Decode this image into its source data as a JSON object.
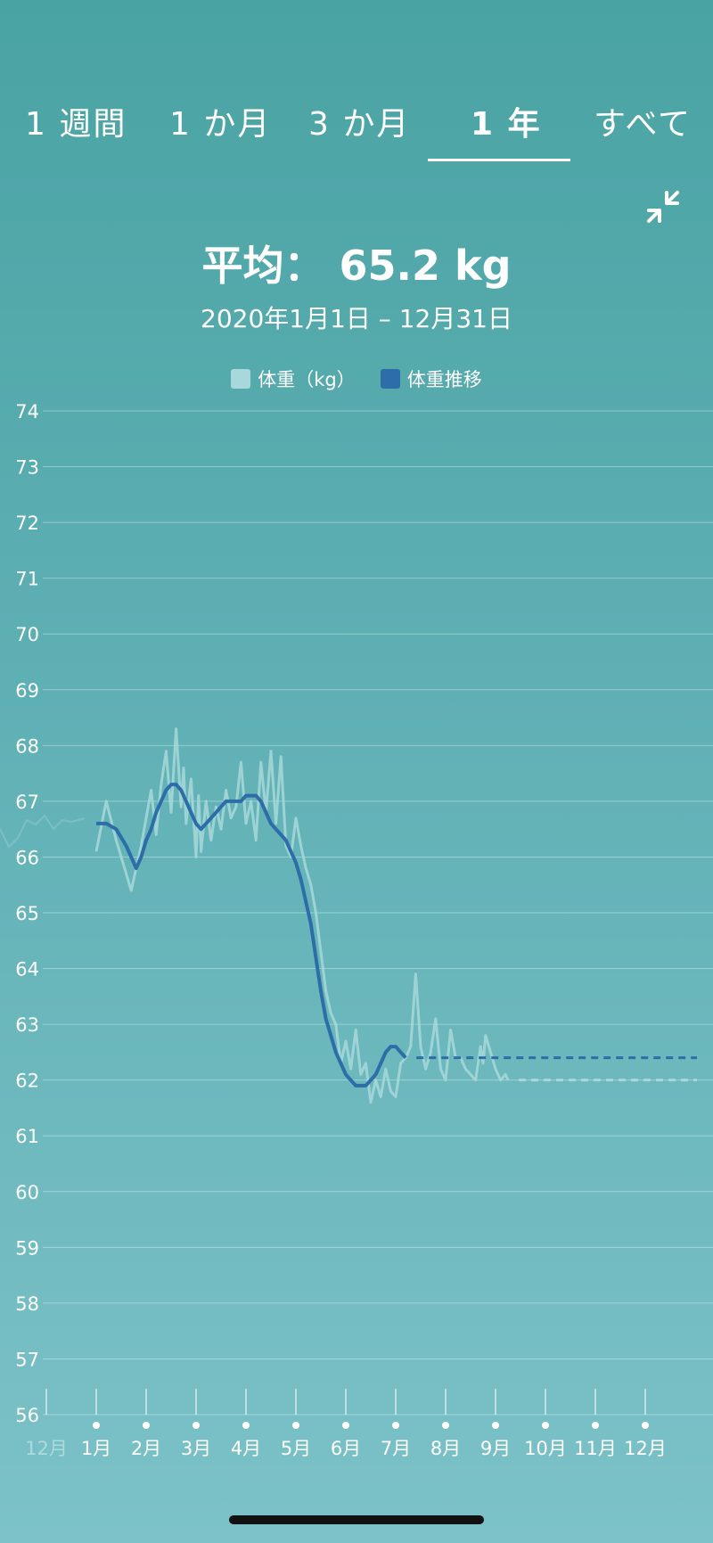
{
  "tabs": [
    {
      "label": "1 週間"
    },
    {
      "label": "1 か月"
    },
    {
      "label": "3 か月"
    },
    {
      "label": "1 年",
      "active": true
    },
    {
      "label": "すべて"
    }
  ],
  "icons": {
    "collapse": "collapse-arrows-icon"
  },
  "summary": {
    "average": "平均： 65.2 kg",
    "date_range": "2020年1月1日 – 12月31日"
  },
  "legend": {
    "raw": "体重（kg）",
    "trend": "体重推移"
  },
  "colors": {
    "raw_series": "#a8d8db",
    "trend_series": "#2d6da8",
    "grid": "#ffffff",
    "background_top": "#4aa3a3",
    "background_bottom": "#7cc2c8"
  },
  "chart_data": {
    "type": "line",
    "title": "",
    "xlabel": "",
    "ylabel": "",
    "ylim": [
      56,
      74
    ],
    "y_ticks": [
      "74",
      "73",
      "72",
      "71",
      "70",
      "69",
      "68",
      "67",
      "66",
      "65",
      "64",
      "63",
      "62",
      "61",
      "60",
      "59",
      "58",
      "57",
      "56"
    ],
    "x_ticks": [
      "1月",
      "2月",
      "3月",
      "4月",
      "5月",
      "6月",
      "7月",
      "8月",
      "9月",
      "10月",
      "11月",
      "12月"
    ],
    "previous_labels": [
      "12月"
    ],
    "grid": true,
    "legend_position": "top-center",
    "series": [
      {
        "name": "体重（kg）",
        "kind": "raw",
        "x": [
          0.0,
          0.2,
          0.4,
          0.7,
          0.9,
          1.0,
          1.1,
          1.2,
          1.3,
          1.4,
          1.5,
          1.6,
          1.7,
          1.75,
          1.8,
          1.9,
          2.0,
          2.05,
          2.1,
          2.2,
          2.3,
          2.4,
          2.5,
          2.6,
          2.7,
          2.8,
          2.9,
          3.0,
          3.1,
          3.2,
          3.3,
          3.4,
          3.5,
          3.6,
          3.7,
          3.8,
          3.9,
          4.0,
          4.1,
          4.2,
          4.3,
          4.4,
          4.5,
          4.6,
          4.7,
          4.8,
          4.9,
          5.0,
          5.1,
          5.2,
          5.3,
          5.4,
          5.5,
          5.6,
          5.7,
          5.8,
          5.9,
          6.0,
          6.1,
          6.2,
          6.3,
          6.4,
          6.5,
          6.6,
          6.7,
          6.8,
          6.9,
          7.0,
          7.1,
          7.2,
          7.3,
          7.4,
          7.5,
          7.6,
          7.7,
          7.75,
          7.8,
          7.9,
          8.0,
          8.1,
          8.2,
          8.25
        ],
        "values": [
          66.1,
          67.0,
          66.3,
          65.4,
          66.2,
          66.7,
          67.2,
          66.4,
          67.3,
          67.9,
          66.8,
          68.3,
          66.9,
          67.6,
          66.6,
          67.4,
          66.0,
          67.1,
          66.1,
          67.0,
          66.3,
          66.9,
          66.5,
          67.2,
          66.7,
          66.9,
          67.7,
          66.6,
          67.0,
          66.3,
          67.7,
          66.8,
          67.9,
          66.6,
          67.8,
          66.2,
          66.0,
          66.7,
          66.2,
          65.8,
          65.5,
          65.0,
          64.3,
          63.6,
          63.2,
          63.0,
          62.3,
          62.7,
          62.2,
          62.9,
          62.1,
          62.3,
          61.6,
          62.0,
          61.7,
          62.2,
          61.8,
          61.7,
          62.3,
          62.4,
          62.6,
          63.9,
          62.6,
          62.2,
          62.5,
          63.1,
          62.2,
          62.0,
          62.9,
          62.4,
          62.4,
          62.2,
          62.1,
          62.0,
          62.6,
          62.3,
          62.8,
          62.5,
          62.2,
          62.0,
          62.1,
          62.0
        ],
        "forecast": 62.0
      },
      {
        "name": "体重推移",
        "kind": "trend",
        "x": [
          0.0,
          0.2,
          0.4,
          0.6,
          0.7,
          0.8,
          0.9,
          1.0,
          1.1,
          1.2,
          1.3,
          1.4,
          1.5,
          1.6,
          1.7,
          1.8,
          1.9,
          2.0,
          2.1,
          2.2,
          2.3,
          2.4,
          2.5,
          2.6,
          2.7,
          2.8,
          2.9,
          3.0,
          3.1,
          3.2,
          3.3,
          3.4,
          3.5,
          3.6,
          3.7,
          3.8,
          3.9,
          4.0,
          4.1,
          4.2,
          4.3,
          4.4,
          4.5,
          4.6,
          4.7,
          4.8,
          4.9,
          5.0,
          5.1,
          5.2,
          5.3,
          5.4,
          5.5,
          5.6,
          5.7,
          5.8,
          5.9,
          6.0,
          6.1,
          6.2
        ],
        "values": [
          66.6,
          66.6,
          66.5,
          66.2,
          66.0,
          65.8,
          66.0,
          66.3,
          66.5,
          66.8,
          67.0,
          67.2,
          67.3,
          67.3,
          67.2,
          67.0,
          66.8,
          66.6,
          66.5,
          66.6,
          66.7,
          66.8,
          66.9,
          67.0,
          67.0,
          67.0,
          67.0,
          67.1,
          67.1,
          67.1,
          67.0,
          66.8,
          66.6,
          66.5,
          66.4,
          66.3,
          66.1,
          65.9,
          65.6,
          65.2,
          64.8,
          64.2,
          63.6,
          63.1,
          62.8,
          62.5,
          62.3,
          62.1,
          62.0,
          61.9,
          61.9,
          61.9,
          62.0,
          62.1,
          62.3,
          62.5,
          62.6,
          62.6,
          62.5,
          62.4
        ],
        "forecast": 62.4
      }
    ]
  }
}
